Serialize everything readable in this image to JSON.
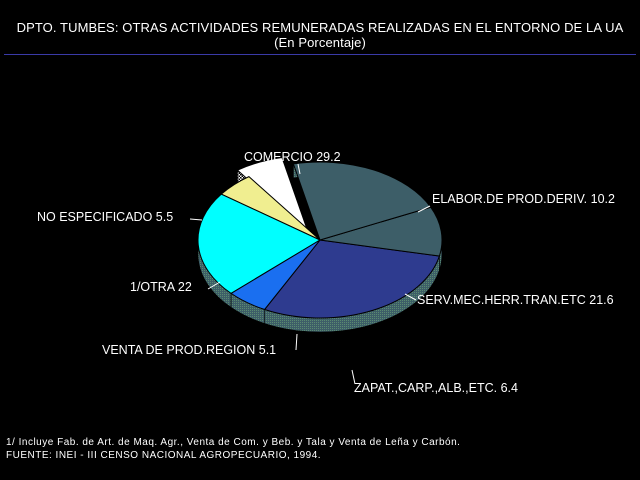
{
  "chart_data": {
    "type": "pie",
    "title": "DPTO. TUMBES: OTRAS ACTIVIDADES REMUNERADAS REALIZADAS EN EL ENTORNO DE LA UA",
    "subtitle": "(En Porcentaje)",
    "slices": [
      {
        "label": "COMERCIO",
        "value": 29.2,
        "display": "COMERCIO  29.2",
        "color": "#2e3b8f",
        "exploded": false
      },
      {
        "label": "ELABOR.DE PROD.DERIV.",
        "value": 10.2,
        "display": "ELABOR.DE PROD.DERIV.  10.2",
        "color": "#3d5e68",
        "exploded": false
      },
      {
        "label": "SERV.MEC.HERR.TRAN.ETC",
        "value": 21.6,
        "display": "SERV.MEC.HERR.TRAN.ETC  21.6",
        "color": "#3d5e68",
        "exploded": false
      },
      {
        "label": "ZAPAT.,CARP.,ALB.,ETC.",
        "value": 6.4,
        "display": "ZAPAT.,CARP.,ALB.,ETC.  6.4",
        "color": "#ffffff",
        "exploded": true
      },
      {
        "label": "VENTA DE PROD.REGION",
        "value": 5.1,
        "display": "VENTA DE PROD.REGION  5.1",
        "color": "#f0ee90",
        "exploded": false
      },
      {
        "label": "1/OTRA",
        "value": 22,
        "display": "1/OTRA  22",
        "color": "#00ffff",
        "exploded": false
      },
      {
        "label": "NO ESPECIFICADO",
        "value": 5.5,
        "display": "NO ESPECIFICADO  5.5",
        "color": "#1a6ff0",
        "exploded": false
      }
    ]
  },
  "footnotes": {
    "note1": "1/ Incluye Fab. de Art. de Maq. Agr., Venta de Com. y Beb. y Tala y Venta de Leña y Carbón.",
    "source": "FUENTE: INEI - III CENSO NACIONAL AGROPECUARIO, 1994."
  }
}
